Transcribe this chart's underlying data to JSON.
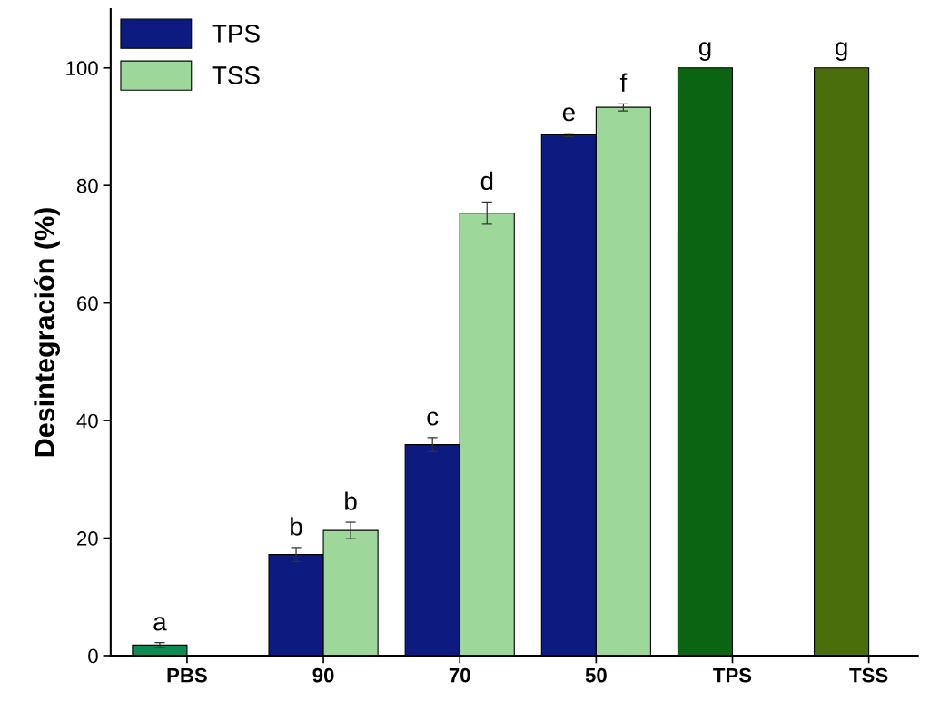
{
  "chart_data": {
    "type": "bar",
    "ylabel": "Desintegración (%)",
    "categories": [
      "PBS",
      "90",
      "70",
      "50",
      "TPS",
      "TSS"
    ],
    "series": [
      {
        "colors": [
          "#0e8a55",
          "#0d1a80",
          "#0d1a80",
          "#0d1a80",
          "#0a6412",
          "#4a6e0c"
        ],
        "values": [
          1.8,
          null,
          null,
          null,
          100,
          100
        ],
        "errors": [
          0.4,
          null,
          null,
          null,
          null,
          null
        ],
        "value_labels": [
          "a",
          null,
          null,
          null,
          "g",
          "g"
        ]
      },
      {
        "name": "TPS",
        "color": "#0d1a80",
        "values": [
          null,
          17.2,
          35.9,
          88.6,
          null,
          null
        ],
        "errors": [
          null,
          1.2,
          1.2,
          0.3,
          null,
          null
        ],
        "value_labels": [
          null,
          "b",
          "c",
          "e",
          null,
          null
        ]
      },
      {
        "name": "TSS",
        "color": "#9dd89a",
        "values": [
          null,
          21.3,
          75.3,
          93.3,
          null,
          null
        ],
        "errors": [
          null,
          1.4,
          1.9,
          0.6,
          null,
          null
        ],
        "value_labels": [
          null,
          "b",
          "d",
          "f",
          null,
          null
        ]
      }
    ],
    "ylim": [
      0,
      110
    ],
    "yticks": [
      0,
      20,
      40,
      60,
      80,
      100
    ],
    "grid": false,
    "legend": "top left"
  }
}
